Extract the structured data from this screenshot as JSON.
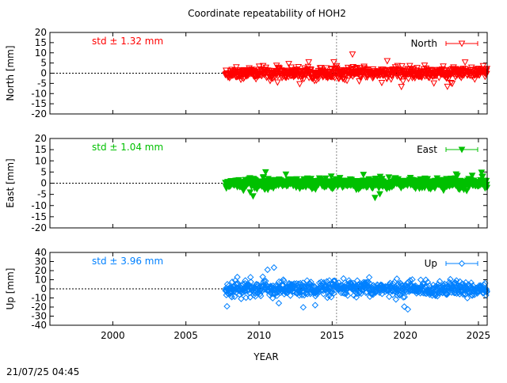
{
  "title": "Coordinate repeatability of HOH2",
  "timestamp": "21/07/25 04:45",
  "xlabel": "YEAR",
  "chart_data": [
    {
      "type": "scatter",
      "name": "North",
      "ylabel": "North [mm]",
      "std_label": "std ± 1.32 mm",
      "color": "#ff0000",
      "marker": "triangle-down-open",
      "xlim": [
        1995.7,
        2025.6
      ],
      "ylim": [
        -20,
        20
      ],
      "yticks": [
        -20,
        -15,
        -10,
        -5,
        0,
        5,
        10,
        15,
        20
      ],
      "xticks": [
        2000,
        2005,
        2010,
        2015,
        2020,
        2025
      ],
      "x_start": 2007.7,
      "x_end": 2025.6,
      "std": 1.32,
      "vline_x": 2015.3,
      "zero_line": true
    },
    {
      "type": "scatter",
      "name": "East",
      "ylabel": "East [mm]",
      "std_label": "std ± 1.04 mm",
      "color": "#00c000",
      "marker": "triangle-down-filled",
      "xlim": [
        1995.7,
        2025.6
      ],
      "ylim": [
        -20,
        20
      ],
      "yticks": [
        -20,
        -15,
        -10,
        -5,
        0,
        5,
        10,
        15,
        20
      ],
      "xticks": [
        2000,
        2005,
        2010,
        2015,
        2020,
        2025
      ],
      "x_start": 2007.7,
      "x_end": 2025.6,
      "std": 1.04,
      "vline_x": 2015.3,
      "zero_line": true
    },
    {
      "type": "scatter",
      "name": "Up",
      "ylabel": "Up [mm]",
      "std_label": "std ± 3.96 mm",
      "color": "#0080ff",
      "marker": "diamond-open",
      "xlim": [
        1995.7,
        2025.6
      ],
      "ylim": [
        -40,
        40
      ],
      "yticks": [
        -40,
        -30,
        -20,
        -10,
        0,
        10,
        20,
        30,
        40
      ],
      "xticks": [
        2000,
        2005,
        2010,
        2015,
        2020,
        2025
      ],
      "x_start": 2007.7,
      "x_end": 2025.6,
      "std": 3.96,
      "vline_x": 2015.3,
      "zero_line": true
    }
  ]
}
